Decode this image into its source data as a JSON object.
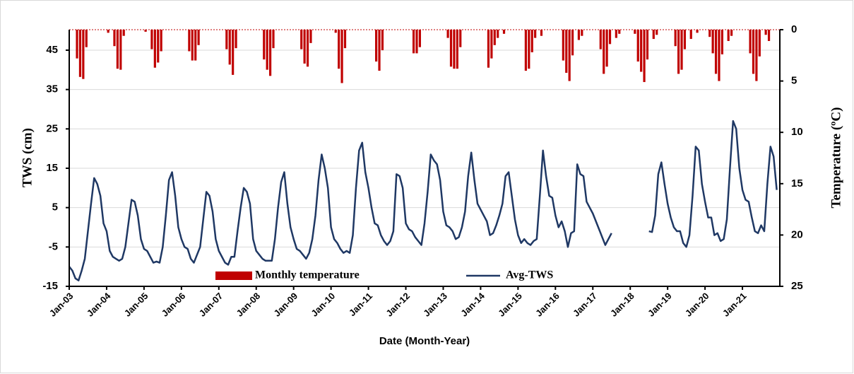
{
  "chart_data": {
    "type": "combo",
    "ylabel": "TWS (cm)",
    "y2label": "Temperature (ºC)",
    "xlabel": "Date (Month-Year)",
    "ylim": [
      -15,
      50.2
    ],
    "yticks": [
      -15,
      -5,
      5,
      15,
      25,
      35,
      45
    ],
    "y2lim": [
      25,
      0
    ],
    "y2ticks": [
      0,
      5,
      10,
      15,
      20,
      25
    ],
    "grid": true,
    "legend": "bottom",
    "categories": [
      "Jan-03",
      null,
      null,
      null,
      null,
      null,
      null,
      null,
      null,
      null,
      null,
      null,
      "Jan-04",
      null,
      null,
      null,
      null,
      null,
      null,
      null,
      null,
      null,
      null,
      null,
      "Jan-05",
      null,
      null,
      null,
      null,
      null,
      null,
      null,
      null,
      null,
      null,
      null,
      "Jan-06",
      null,
      null,
      null,
      null,
      null,
      null,
      null,
      null,
      null,
      null,
      null,
      "Jan-07",
      null,
      null,
      null,
      null,
      null,
      null,
      null,
      null,
      null,
      null,
      null,
      "Jan-08",
      null,
      null,
      null,
      null,
      null,
      null,
      null,
      null,
      null,
      null,
      null,
      "Jan-09",
      null,
      null,
      null,
      null,
      null,
      null,
      null,
      null,
      null,
      null,
      null,
      "Jan-10",
      null,
      null,
      null,
      null,
      null,
      null,
      null,
      null,
      null,
      null,
      null,
      "Jan-11",
      null,
      null,
      null,
      null,
      null,
      null,
      null,
      null,
      null,
      null,
      null,
      "Jan-12",
      null,
      null,
      null,
      null,
      null,
      null,
      null,
      null,
      null,
      null,
      null,
      "Jan-13",
      null,
      null,
      null,
      null,
      null,
      null,
      null,
      null,
      null,
      null,
      null,
      "Jan-14",
      null,
      null,
      null,
      null,
      null,
      null,
      null,
      null,
      null,
      null,
      null,
      "Jan-15",
      null,
      null,
      null,
      null,
      null,
      null,
      null,
      null,
      null,
      null,
      null,
      "Jan-16",
      null,
      null,
      null,
      null,
      null,
      null,
      null,
      null,
      null,
      null,
      null,
      "Jan-17",
      null,
      null,
      null,
      null,
      null,
      null,
      null,
      null,
      null,
      null,
      null,
      "Jan-18",
      null,
      null,
      null,
      null,
      null,
      null,
      null,
      null,
      null,
      null,
      null,
      "Jan-19",
      null,
      null,
      null,
      null,
      null,
      null,
      null,
      null,
      null,
      null,
      null,
      "Jan-20",
      null,
      null,
      null,
      null,
      null,
      null,
      null,
      null,
      null,
      null,
      null,
      "Jan-21",
      null,
      null,
      null,
      null,
      null,
      null,
      null,
      null,
      null,
      null,
      null
    ],
    "series": [
      {
        "name": "Monthly temperature",
        "type": "bar",
        "axis": "y2",
        "color": "#c00000",
        "values": [
          0,
          0,
          2.8,
          4.6,
          4.8,
          1.7,
          0,
          0,
          0,
          0,
          0,
          0,
          0.3,
          0,
          1.6,
          3.8,
          3.9,
          0.6,
          0,
          0,
          0,
          0,
          0,
          0,
          0.2,
          0,
          1.9,
          3.7,
          3.2,
          2.1,
          0,
          0,
          0,
          0,
          0,
          0,
          0,
          0,
          2.1,
          3,
          3,
          1.5,
          0,
          0,
          0,
          0,
          0,
          0,
          0,
          0,
          1.9,
          3.4,
          4.4,
          1.8,
          0,
          0,
          0,
          0,
          0,
          0,
          0,
          0,
          2.9,
          3.9,
          4.5,
          1.8,
          0,
          0,
          0,
          0,
          0,
          0,
          0,
          0,
          1.9,
          3.3,
          3.6,
          1.3,
          0,
          0,
          0,
          0,
          0,
          0,
          0,
          0.3,
          3.8,
          5.2,
          1.8,
          0,
          0,
          0,
          0,
          0,
          0,
          0,
          0,
          0,
          3.1,
          4,
          2,
          0,
          0,
          0,
          0,
          0,
          0,
          0,
          0,
          0,
          2.3,
          2.3,
          1.7,
          0,
          0,
          0,
          0,
          0,
          0,
          0,
          0,
          0.8,
          3.6,
          3.8,
          3.8,
          1.7,
          0,
          0,
          0,
          0,
          0,
          0,
          0,
          0,
          3.7,
          2.8,
          1.5,
          0.8,
          0,
          0.4,
          0,
          0,
          0,
          0,
          0,
          0,
          4,
          3.8,
          2.2,
          0.8,
          0,
          0.6,
          0,
          0,
          0,
          0,
          0,
          0,
          3,
          4.2,
          5,
          2.5,
          0,
          1,
          0.6,
          0,
          0,
          0,
          0,
          0,
          1.9,
          4.3,
          3.6,
          1.4,
          0,
          0.8,
          0.4,
          0,
          0,
          0,
          0,
          0.4,
          3.1,
          4.1,
          5.1,
          2.9,
          0,
          0.9,
          0.5,
          0,
          0,
          0,
          0,
          0,
          1.6,
          4.3,
          3.9,
          1.9,
          0,
          0.9,
          0,
          0.3,
          0,
          0,
          0,
          0.7,
          2.3,
          4.3,
          5,
          2.4,
          0,
          1.1,
          0.6,
          0,
          0,
          0,
          0,
          0,
          2.3,
          4.3,
          5,
          2.6,
          0,
          0.5,
          1.1,
          0,
          0,
          0
        ]
      },
      {
        "name": "Avg-TWS",
        "type": "line",
        "color": "#1f3864",
        "values": [
          -10,
          -11,
          -13,
          -13.5,
          -11,
          -8,
          -1,
          6,
          12.5,
          11,
          8,
          1,
          -1,
          -6,
          -7.5,
          -8,
          -8.5,
          -8,
          -5,
          1,
          7,
          6.5,
          3,
          -3,
          -5.5,
          -6,
          -7.5,
          -9,
          -8.7,
          -9,
          -5,
          3,
          12,
          14,
          8,
          0,
          -3,
          -5,
          -5.5,
          -8,
          -9,
          -7,
          -5,
          2,
          9,
          8,
          4,
          -3,
          -6,
          -7.5,
          -9,
          -9.5,
          -7.5,
          -7.5,
          -1,
          5,
          10,
          9,
          6,
          -3,
          -6,
          -7,
          -8,
          -8.5,
          -8.5,
          -8.5,
          -3,
          5,
          11.5,
          14,
          6,
          0,
          -3,
          -5.5,
          -6,
          -7,
          -8,
          -6.5,
          -3,
          3,
          12,
          18.5,
          15,
          10,
          0,
          -3,
          -4,
          -5.5,
          -6.5,
          -6,
          -6.5,
          -2,
          10,
          19.5,
          21.5,
          14,
          10,
          5,
          1,
          0.5,
          -2,
          -3.5,
          -4.5,
          -3.5,
          -1,
          13.5,
          13,
          10,
          1,
          -0.5,
          -1,
          -2.5,
          -3.5,
          -4.5,
          1,
          9,
          18.5,
          17,
          16,
          12,
          4,
          0.5,
          0,
          -1,
          -3,
          -2.5,
          0,
          4,
          13,
          19,
          12,
          6,
          4.5,
          3,
          1.5,
          -2,
          -1.5,
          0.5,
          3,
          6,
          13,
          14,
          8,
          2,
          -2,
          -4,
          -3,
          -4,
          -4.5,
          -3.5,
          -3,
          8,
          19.5,
          13,
          8,
          7.5,
          3,
          0,
          1.5,
          -1,
          -5,
          -1.5,
          -1,
          16,
          13.5,
          13,
          6.5,
          5,
          3.5,
          1.5,
          -0.5,
          -2.5,
          -4.5,
          -3,
          -1.5,
          null,
          null,
          null,
          null,
          null,
          null,
          null,
          null,
          null,
          null,
          null,
          -1,
          -1.2,
          3,
          13.5,
          16.5,
          11,
          6,
          2.5,
          0,
          -1,
          -1,
          -4,
          -5,
          -2,
          8,
          20.5,
          19.5,
          11,
          6.5,
          2.5,
          2.5,
          -2,
          -1.5,
          -3.5,
          -3,
          2,
          15,
          27,
          25,
          15,
          9.5,
          7,
          6.5,
          2.5,
          -1,
          -1.5,
          0.5,
          -1,
          11,
          20.5,
          18,
          9.5
        ]
      }
    ]
  }
}
